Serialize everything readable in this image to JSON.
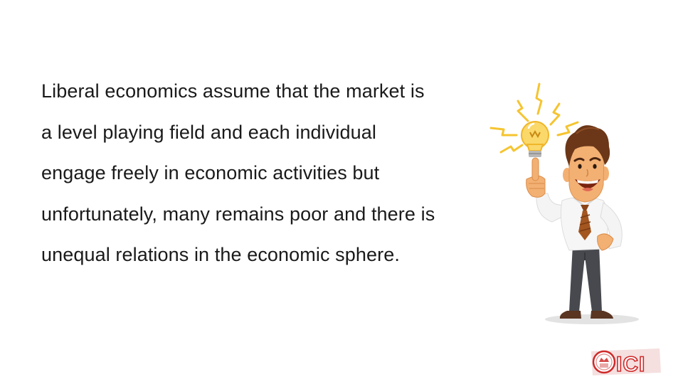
{
  "slide": {
    "body_lines": [
      "Liberal economics assume that the market is",
      "a level playing field and each individual",
      "engage freely in economic activities but",
      "unfortunately, many remains poor and there is",
      "unequal relations in the economic sphere."
    ]
  },
  "logo": {
    "text": "ICI"
  },
  "icons": {
    "illustration": "businessman-lightbulb-idea-illustration",
    "logo": "ici-logo-icon"
  },
  "colors": {
    "text": "#1a1a1a",
    "skin": "#f3b073",
    "hair": "#6b3718",
    "tie": "#a0521e",
    "bulb": "#f6c94b",
    "logo": "#cf2a2a"
  }
}
